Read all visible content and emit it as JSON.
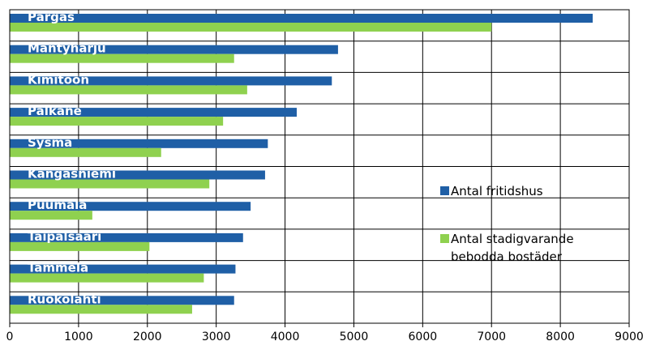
{
  "chart_data": {
    "type": "bar",
    "orientation": "horizontal",
    "categories": [
      "Pargas",
      "Mäntyharju",
      "Kimitoön",
      "Pälkäne",
      "Sysmä",
      "Kangasniemi",
      "Puumala",
      "Taipalsaari",
      "Tammela",
      "Ruokolahti"
    ],
    "series": [
      {
        "name": "Antal fritidshus",
        "color": "#1f5fa6",
        "values": [
          8470,
          4770,
          4680,
          4170,
          3750,
          3710,
          3500,
          3390,
          3280,
          3260
        ]
      },
      {
        "name": "Antal stadigvarande bebodda bostäder",
        "color": "#8fd14f",
        "values": [
          7000,
          3260,
          3450,
          3100,
          2200,
          2900,
          1200,
          2030,
          2820,
          2650
        ]
      }
    ],
    "xlim": [
      0,
      9000
    ],
    "xticks": [
      "0",
      "1000",
      "2000",
      "3000",
      "4000",
      "5000",
      "6000",
      "7000",
      "8000",
      "9000"
    ],
    "grid": true,
    "legend_position": "right",
    "legend": [
      {
        "lines": [
          "Antal fritidshus"
        ],
        "color": "#1f5fa6"
      },
      {
        "lines": [
          "Antal  stadigvarande",
          "bebodda bostäder"
        ],
        "color": "#8fd14f"
      }
    ]
  }
}
